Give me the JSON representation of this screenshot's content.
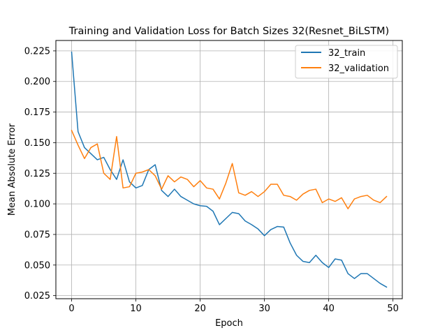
{
  "chart_data": {
    "type": "line",
    "title": "Training and Validation Loss for Batch Sizes 32(Resnet_BiLSTM)",
    "xlabel": "Epoch",
    "ylabel": "Mean Absolute Error",
    "xlim": [
      -2.45,
      51.45
    ],
    "ylim": [
      0.0225,
      0.2335
    ],
    "xticks": [
      0,
      10,
      20,
      30,
      40,
      50
    ],
    "yticks": [
      0.025,
      0.05,
      0.075,
      0.1,
      0.125,
      0.15,
      0.175,
      0.2,
      0.225
    ],
    "xtick_labels": [
      "0",
      "10",
      "20",
      "30",
      "40",
      "50"
    ],
    "ytick_labels": [
      "0.025",
      "0.050",
      "0.075",
      "0.100",
      "0.125",
      "0.150",
      "0.175",
      "0.200",
      "0.225"
    ],
    "grid": true,
    "legend_position": "upper right",
    "series": [
      {
        "name": "32_train",
        "color": "#1f77b4",
        "x": [
          0,
          1,
          2,
          3,
          4,
          5,
          6,
          7,
          8,
          9,
          10,
          11,
          12,
          13,
          14,
          15,
          16,
          17,
          18,
          19,
          20,
          21,
          22,
          23,
          24,
          25,
          26,
          27,
          28,
          29,
          30,
          31,
          32,
          33,
          34,
          35,
          36,
          37,
          38,
          39,
          40,
          41,
          42,
          43,
          44,
          45,
          46,
          47,
          48,
          49
        ],
        "values": [
          0.224,
          0.159,
          0.146,
          0.141,
          0.136,
          0.138,
          0.128,
          0.12,
          0.136,
          0.118,
          0.113,
          0.115,
          0.128,
          0.132,
          0.111,
          0.106,
          0.112,
          0.106,
          0.103,
          0.1,
          0.0985,
          0.098,
          0.094,
          0.083,
          0.088,
          0.093,
          0.092,
          0.086,
          0.083,
          0.0795,
          0.074,
          0.079,
          0.0815,
          0.081,
          0.068,
          0.058,
          0.053,
          0.052,
          0.058,
          0.052,
          0.048,
          0.055,
          0.054,
          0.043,
          0.039,
          0.043,
          0.043,
          0.039,
          0.035,
          0.032
        ]
      },
      {
        "name": "32_validation",
        "color": "#ff7f0e",
        "x": [
          0,
          1,
          2,
          3,
          4,
          5,
          6,
          7,
          8,
          9,
          10,
          11,
          12,
          13,
          14,
          15,
          16,
          17,
          18,
          19,
          20,
          21,
          22,
          23,
          24,
          25,
          26,
          27,
          28,
          29,
          30,
          31,
          32,
          33,
          34,
          35,
          36,
          37,
          38,
          39,
          40,
          41,
          42,
          43,
          44,
          45,
          46,
          47,
          48,
          49
        ],
        "values": [
          0.16,
          0.148,
          0.137,
          0.146,
          0.149,
          0.125,
          0.12,
          0.155,
          0.113,
          0.114,
          0.125,
          0.126,
          0.128,
          0.123,
          0.112,
          0.123,
          0.118,
          0.122,
          0.12,
          0.114,
          0.119,
          0.113,
          0.112,
          0.104,
          0.117,
          0.133,
          0.109,
          0.107,
          0.11,
          0.106,
          0.11,
          0.116,
          0.116,
          0.107,
          0.106,
          0.103,
          0.108,
          0.111,
          0.112,
          0.101,
          0.104,
          0.102,
          0.105,
          0.096,
          0.104,
          0.106,
          0.107,
          0.103,
          0.101,
          0.106
        ]
      }
    ]
  }
}
